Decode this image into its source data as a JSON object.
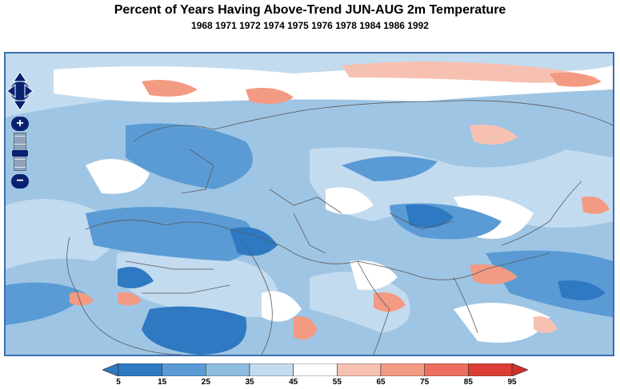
{
  "title": "Percent of Years Having Above-Trend JUN-AUG 2m Temperature",
  "subtitle": "1968 1971 1972 1974 1975 1976 1978 1984 1986 1992",
  "map": {
    "controls": {
      "pan": "pan-arrows",
      "zoom_in_label": "+",
      "zoom_out_label": "−"
    }
  },
  "legend": {
    "ticks": [
      "5",
      "15",
      "25",
      "35",
      "45",
      "55",
      "65",
      "75",
      "85",
      "95"
    ],
    "colors": [
      "#2f79c2",
      "#5a9bd5",
      "#8fbde0",
      "#c3dbef",
      "#ffffff",
      "#f7c1b2",
      "#f39a82",
      "#ec705d",
      "#dc3d35"
    ],
    "under_color": "#2f79c2",
    "over_color": "#d42f2a"
  }
}
